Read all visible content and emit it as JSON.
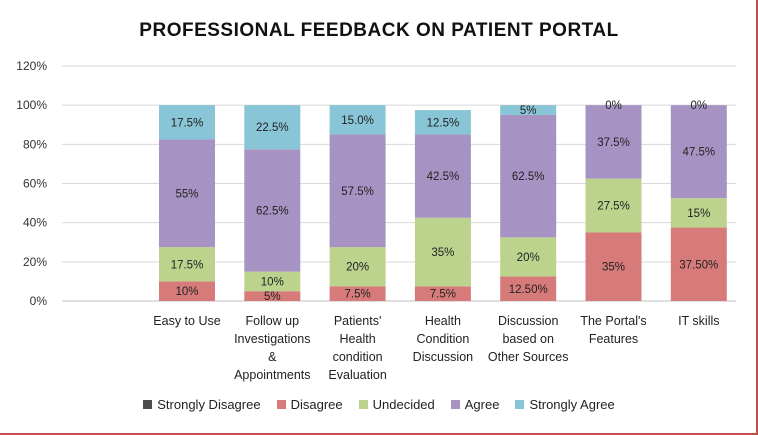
{
  "chart_data": {
    "type": "bar",
    "stacked": true,
    "title": "PROFESSIONAL FEEDBACK ON PATIENT PORTAL",
    "xlabel": "",
    "ylabel": "",
    "ylim": [
      0,
      120
    ],
    "yticks": [
      "0%",
      "20%",
      "40%",
      "60%",
      "80%",
      "100%",
      "120%"
    ],
    "grid": true,
    "legend_position": "bottom",
    "categories": [
      "Easy to Use",
      "Follow up Investigations & Appointments",
      "Patients' Health condition Evaluation",
      "Health Condition Discussion",
      "Discussion based on Other Sources",
      "The Portal's Features",
      "IT skills"
    ],
    "category_lines": [
      [
        "Easy to Use"
      ],
      [
        "Follow up",
        "Investigations",
        "&",
        "Appointments"
      ],
      [
        "Patients'",
        "Health",
        "condition",
        "Evaluation"
      ],
      [
        "Health",
        "Condition",
        "Discussion"
      ],
      [
        "Discussion",
        "based on",
        "Other Sources"
      ],
      [
        "The Portal's",
        "Features"
      ],
      [
        "IT skills"
      ]
    ],
    "series": [
      {
        "name": "Strongly Disagree",
        "color": "#4d4d4d",
        "values": [
          0,
          0,
          0,
          0,
          0,
          0,
          0
        ],
        "labels": [
          "",
          "",
          "",
          "",
          "",
          "",
          ""
        ]
      },
      {
        "name": "Disagree",
        "color": "#d77b7a",
        "values": [
          10,
          5,
          7.5,
          7.5,
          12.5,
          35,
          37.5
        ],
        "labels": [
          "10%",
          "5%",
          "7.5%",
          "7.5%",
          "12.50%",
          "35%",
          "37.50%"
        ]
      },
      {
        "name": "Undecided",
        "color": "#bcd38d",
        "values": [
          17.5,
          10,
          20,
          35,
          20,
          27.5,
          15
        ],
        "labels": [
          "17.5%",
          "10%",
          "20%",
          "35%",
          "20%",
          "27.5%",
          "15%"
        ]
      },
      {
        "name": "Agree",
        "color": "#a793c3",
        "values": [
          55,
          62.5,
          57.5,
          42.5,
          62.5,
          37.5,
          47.5
        ],
        "labels": [
          "55%",
          "62.5%",
          "57.5%",
          "42.5%",
          "62.5%",
          "37.5%",
          "47.5%"
        ]
      },
      {
        "name": "Strongly Agree",
        "color": "#88c5d6",
        "values": [
          17.5,
          22.5,
          15,
          12.5,
          5,
          0,
          0
        ],
        "labels": [
          "17.5%",
          "22.5%",
          "15.0%",
          "12.5%",
          "5%",
          "0%",
          "0%"
        ]
      }
    ]
  }
}
